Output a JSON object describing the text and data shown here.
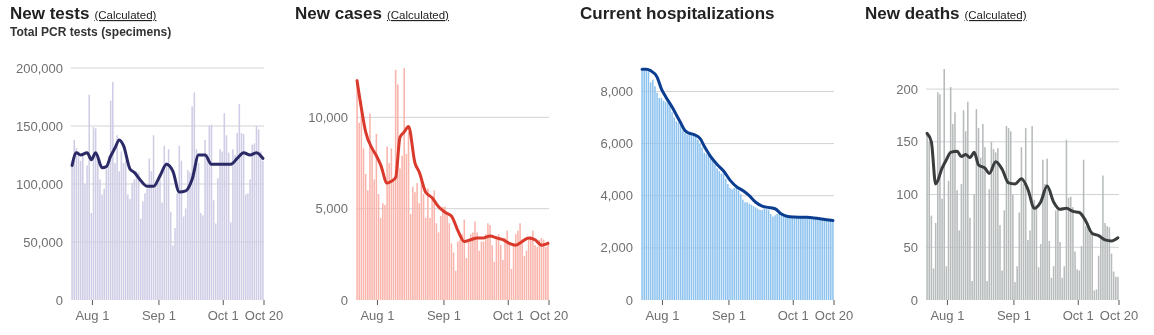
{
  "chart_data": [
    {
      "type": "bar",
      "title": "New tests",
      "subtitle": "Total PCR tests (specimens)",
      "annotations": [
        "(Calculated)"
      ],
      "x": [
        "--07-23",
        "--07-24",
        "--07-25",
        "--07-26",
        "--07-27",
        "--07-28",
        "--07-29",
        "--07-30",
        "--07-31",
        "--08-01",
        "--08-02",
        "--08-03",
        "--08-04",
        "--08-05",
        "--08-06",
        "--08-07",
        "--08-08",
        "--08-09",
        "--08-10",
        "--08-11",
        "--08-12",
        "--08-13",
        "--08-14",
        "--08-15",
        "--08-16",
        "--08-17",
        "--08-18",
        "--08-19",
        "--08-20",
        "--08-21",
        "--08-22",
        "--08-23",
        "--08-24",
        "--08-25",
        "--08-26",
        "--08-27",
        "--08-28",
        "--08-29",
        "--08-30",
        "--08-31",
        "--09-01",
        "--09-02",
        "--09-03",
        "--09-04",
        "--09-05",
        "--09-06",
        "--09-07",
        "--09-08",
        "--09-09",
        "--09-10",
        "--09-11",
        "--09-12",
        "--09-13",
        "--09-14",
        "--09-15",
        "--09-16",
        "--09-17",
        "--09-18",
        "--09-19",
        "--09-20",
        "--09-21",
        "--09-22",
        "--09-23",
        "--09-24",
        "--09-25",
        "--09-26",
        "--09-27",
        "--09-28",
        "--09-29",
        "--09-30",
        "--10-01",
        "--10-02",
        "--10-03",
        "--10-04",
        "--10-05",
        "--10-06",
        "--10-07",
        "--10-08",
        "--10-09",
        "--10-10",
        "--10-11",
        "--10-12",
        "--10-13",
        "--10-14",
        "--10-15",
        "--10-16",
        "--10-17",
        "--10-18",
        "--10-19",
        "--10-20"
      ],
      "xlim": [
        "--07-22",
        "--10-20"
      ],
      "xticks": [
        {
          "value": "--08-01",
          "label": "Aug 1"
        },
        {
          "value": "--09-01",
          "label": "Sep 1"
        },
        {
          "value": "--10-01",
          "label": "Oct 1"
        },
        {
          "value": "--10-20",
          "label": "Oct 20"
        }
      ],
      "ylim": [
        0,
        200000
      ],
      "yticks": [
        0,
        {
          "value": 50000,
          "label": "50,000"
        },
        {
          "value": 100000,
          "label": "100,000"
        },
        {
          "value": 150000,
          "label": "150,000"
        },
        {
          "value": 200000,
          "label": "200,000"
        }
      ],
      "grid": "y",
      "series": [
        {
          "color": "#cfcde6",
          "values": [
            115000,
            138000,
            131000,
            128000,
            120000,
            124000,
            100000,
            116000,
            177000,
            75000,
            149000,
            148000,
            120000,
            104000,
            91000,
            96000,
            113000,
            124000,
            172000,
            188000,
            118000,
            142000,
            111000,
            128000,
            118000,
            120000,
            91000,
            87000,
            101000,
            104000,
            111000,
            110000,
            70000,
            85000,
            92000,
            96000,
            122000,
            111000,
            142000,
            99000,
            101000,
            104000,
            84000,
            133000,
            119000,
            130000,
            76000,
            47000,
            62000,
            92000,
            133000,
            120000,
            72000,
            79000,
            112000,
            110000,
            167000,
            179000,
            130000,
            118000,
            75000,
            73000,
            138000,
            126000,
            150000,
            151000,
            86000,
            66000,
            105000,
            130000,
            128000,
            161000,
            142000,
            127000,
            67000,
            130000,
            125000,
            144000,
            169000,
            144000,
            143000,
            91000,
            92000,
            104000,
            134000,
            135000,
            150000,
            147000,
            128000,
            120000
          ]
        },
        {
          "type": "line",
          "color": "#2b2a66",
          "x": [
            "--07-23",
            "--07-25",
            "--07-27",
            "--07-30",
            "--08-01",
            "--08-03",
            "--08-06",
            "--08-08",
            "--08-10",
            "--08-12",
            "--08-14",
            "--08-16",
            "--08-19",
            "--08-21",
            "--08-24",
            "--08-27",
            "--08-30",
            "--09-02",
            "--09-05",
            "--09-08",
            "--09-11",
            "--09-14",
            "--09-17",
            "--09-20",
            "--09-23",
            "--09-26",
            "--09-29",
            "--10-02",
            "--10-05",
            "--10-08",
            "--10-11",
            "--10-14",
            "--10-17",
            "--10-20"
          ],
          "values": [
            116000,
            127000,
            125000,
            127000,
            121000,
            127000,
            114000,
            115000,
            124000,
            131000,
            138000,
            133000,
            113000,
            110000,
            103000,
            98000,
            98000,
            107000,
            117000,
            111000,
            93000,
            94000,
            104000,
            125000,
            125000,
            117000,
            117000,
            117000,
            117000,
            122000,
            127000,
            125000,
            127000,
            122000
          ]
        }
      ]
    },
    {
      "type": "bar",
      "title": "New cases",
      "annotations": [
        "(Calculated)"
      ],
      "x": [
        "--07-23",
        "--07-24",
        "--07-25",
        "--07-26",
        "--07-27",
        "--07-28",
        "--07-29",
        "--07-30",
        "--07-31",
        "--08-01",
        "--08-02",
        "--08-03",
        "--08-04",
        "--08-05",
        "--08-06",
        "--08-07",
        "--08-08",
        "--08-09",
        "--08-10",
        "--08-11",
        "--08-12",
        "--08-13",
        "--08-14",
        "--08-15",
        "--08-16",
        "--08-17",
        "--08-18",
        "--08-19",
        "--08-20",
        "--08-21",
        "--08-22",
        "--08-23",
        "--08-24",
        "--08-25",
        "--08-26",
        "--08-27",
        "--08-28",
        "--08-29",
        "--08-30",
        "--08-31",
        "--09-01",
        "--09-02",
        "--09-03",
        "--09-04",
        "--09-05",
        "--09-06",
        "--09-07",
        "--09-08",
        "--09-09",
        "--09-10",
        "--09-11",
        "--09-12",
        "--09-13",
        "--09-14",
        "--09-15",
        "--09-16",
        "--09-17",
        "--09-18",
        "--09-19",
        "--09-20",
        "--09-21",
        "--09-22",
        "--09-23",
        "--09-24",
        "--09-25",
        "--09-26",
        "--09-27",
        "--09-28",
        "--09-29",
        "--09-30",
        "--10-01",
        "--10-02",
        "--10-03",
        "--10-04",
        "--10-05",
        "--10-06",
        "--10-07",
        "--10-08",
        "--10-09",
        "--10-10",
        "--10-11",
        "--10-12",
        "--10-13",
        "--10-14",
        "--10-15",
        "--10-16",
        "--10-17",
        "--10-18",
        "--10-19",
        "--10-20"
      ],
      "xlim": [
        "--07-22",
        "--10-20"
      ],
      "xticks": [
        {
          "value": "--08-01",
          "label": "Aug 1"
        },
        {
          "value": "--09-01",
          "label": "Sep 1"
        },
        {
          "value": "--10-01",
          "label": "Oct 1"
        },
        {
          "value": "--10-20",
          "label": "Oct 20"
        }
      ],
      "ylim": [
        0,
        12700
      ],
      "yticks": [
        0,
        {
          "value": 5000,
          "label": "5,000"
        },
        {
          "value": 10000,
          "label": "10,000"
        }
      ],
      "grid": "y",
      "series": [
        {
          "color": "#f9b4ab",
          "values": [
            12100,
            9700,
            10900,
            8300,
            6900,
            6000,
            10200,
            8200,
            6600,
            9100,
            5800,
            4500,
            5300,
            5200,
            8400,
            7500,
            8300,
            6500,
            12600,
            11800,
            7200,
            7900,
            12700,
            8000,
            9200,
            4700,
            6200,
            5900,
            6400,
            5300,
            6800,
            5800,
            4500,
            6100,
            4500,
            5500,
            6000,
            4200,
            3700,
            4600,
            5100,
            5100,
            4800,
            4200,
            3100,
            2600,
            1600,
            3200,
            3300,
            3600,
            4400,
            2300,
            3300,
            3600,
            3700,
            4300,
            3700,
            2700,
            3200,
            3200,
            3600,
            4200,
            4100,
            3000,
            2100,
            3500,
            3600,
            3000,
            2200,
            3400,
            3800,
            3100,
            1700,
            3100,
            3600,
            3800,
            4200,
            3300,
            2400,
            2700,
            3400,
            3500,
            3800,
            3000,
            2900,
            3300,
            3400,
            3300,
            2900,
            3200
          ]
        },
        {
          "type": "line",
          "color": "#d93a2b",
          "x": [
            "--07-23",
            "--07-25",
            "--07-27",
            "--07-30",
            "--08-01",
            "--08-03",
            "--08-06",
            "--08-08",
            "--08-10",
            "--08-12",
            "--08-14",
            "--08-16",
            "--08-19",
            "--08-21",
            "--08-24",
            "--08-27",
            "--08-30",
            "--09-02",
            "--09-05",
            "--09-08",
            "--09-11",
            "--09-14",
            "--09-17",
            "--09-20",
            "--09-23",
            "--09-26",
            "--09-29",
            "--10-02",
            "--10-05",
            "--10-08",
            "--10-11",
            "--10-14",
            "--10-17",
            "--10-20"
          ],
          "values": [
            12000,
            10500,
            9200,
            8300,
            7900,
            7400,
            6400,
            6500,
            6700,
            8900,
            9200,
            9500,
            7500,
            7000,
            5900,
            5600,
            5100,
            4800,
            4600,
            3800,
            3200,
            3300,
            3400,
            3400,
            3500,
            3400,
            3300,
            3100,
            3000,
            3200,
            3400,
            3300,
            3000,
            3100
          ]
        }
      ]
    },
    {
      "type": "bar",
      "title": "Current hospitalizations",
      "x": [
        "--07-23",
        "--07-24",
        "--07-25",
        "--07-26",
        "--07-27",
        "--07-28",
        "--07-29",
        "--07-30",
        "--07-31",
        "--08-01",
        "--08-02",
        "--08-03",
        "--08-04",
        "--08-05",
        "--08-06",
        "--08-07",
        "--08-08",
        "--08-09",
        "--08-10",
        "--08-11",
        "--08-12",
        "--08-13",
        "--08-14",
        "--08-15",
        "--08-16",
        "--08-17",
        "--08-18",
        "--08-19",
        "--08-20",
        "--08-21",
        "--08-22",
        "--08-23",
        "--08-24",
        "--08-25",
        "--08-26",
        "--08-27",
        "--08-28",
        "--08-29",
        "--08-30",
        "--08-31",
        "--09-01",
        "--09-02",
        "--09-03",
        "--09-04",
        "--09-05",
        "--09-06",
        "--09-07",
        "--09-08",
        "--09-09",
        "--09-10",
        "--09-11",
        "--09-12",
        "--09-13",
        "--09-14",
        "--09-15",
        "--09-16",
        "--09-17",
        "--09-18",
        "--09-19",
        "--09-20",
        "--09-21",
        "--09-22",
        "--09-23",
        "--09-24",
        "--09-25",
        "--09-26",
        "--09-27",
        "--09-28",
        "--09-29",
        "--09-30",
        "--10-01",
        "--10-02",
        "--10-03",
        "--10-04",
        "--10-05",
        "--10-06",
        "--10-07",
        "--10-08",
        "--10-09",
        "--10-10",
        "--10-11",
        "--10-12",
        "--10-13",
        "--10-14",
        "--10-15",
        "--10-16",
        "--10-17",
        "--10-18",
        "--10-19",
        "--10-20"
      ],
      "xlim": [
        "--07-22",
        "--10-20"
      ],
      "xticks": [
        {
          "value": "--08-01",
          "label": "Aug 1"
        },
        {
          "value": "--09-01",
          "label": "Sep 1"
        },
        {
          "value": "--10-01",
          "label": "Oct 1"
        },
        {
          "value": "--10-20",
          "label": "Oct 20"
        }
      ],
      "ylim": [
        0,
        8900
      ],
      "yticks": [
        0,
        {
          "value": 2000,
          "label": "2,000"
        },
        {
          "value": 4000,
          "label": "4,000"
        },
        {
          "value": 6000,
          "label": "6,000"
        },
        {
          "value": 8000,
          "label": "8,000"
        }
      ],
      "grid": "y",
      "series": [
        {
          "color": "#8ec3ef",
          "values": [
            8800,
            8800,
            8800,
            8800,
            8350,
            8450,
            8200,
            7950,
            7750,
            7750,
            7650,
            7600,
            7550,
            7450,
            7200,
            7000,
            6850,
            6800,
            6700,
            6500,
            6400,
            6350,
            6350,
            6350,
            6400,
            6300,
            6150,
            6000,
            5850,
            5650,
            5600,
            5550,
            5450,
            5350,
            5200,
            5050,
            4950,
            4850,
            4850,
            4650,
            4450,
            4300,
            4250,
            4300,
            4300,
            4200,
            4050,
            3850,
            3750,
            3750,
            3700,
            3650,
            3600,
            3550,
            3500,
            3450,
            3450,
            3500,
            3500,
            3450,
            3300,
            3200,
            3250,
            3300,
            3350,
            3300,
            3250,
            3200,
            3150,
            3150,
            3150,
            3150,
            3150,
            3150,
            3150,
            3150,
            3150,
            3150,
            3150,
            3100,
            3100,
            3100,
            3100,
            3100,
            3100,
            3080,
            3060,
            3050,
            3050,
            3050
          ]
        },
        {
          "type": "line",
          "color": "#0b3d91",
          "x": [
            "--07-23",
            "--07-25",
            "--07-27",
            "--07-30",
            "--08-01",
            "--08-03",
            "--08-06",
            "--08-08",
            "--08-10",
            "--08-12",
            "--08-14",
            "--08-16",
            "--08-19",
            "--08-21",
            "--08-24",
            "--08-27",
            "--08-30",
            "--09-02",
            "--09-05",
            "--09-08",
            "--09-11",
            "--09-14",
            "--09-17",
            "--09-20",
            "--09-23",
            "--09-26",
            "--09-29",
            "--10-02",
            "--10-05",
            "--10-08",
            "--10-11",
            "--10-14",
            "--10-17",
            "--10-20"
          ],
          "values": [
            8850,
            8850,
            8800,
            8550,
            8100,
            7800,
            7400,
            7100,
            6800,
            6500,
            6400,
            6350,
            6200,
            5900,
            5500,
            5200,
            4950,
            4600,
            4350,
            4200,
            4000,
            3750,
            3600,
            3550,
            3500,
            3300,
            3200,
            3180,
            3170,
            3170,
            3150,
            3120,
            3080,
            3050
          ]
        }
      ]
    },
    {
      "type": "bar",
      "title": "New deaths",
      "annotations": [
        "(Calculated)"
      ],
      "x": [
        "--07-23",
        "--07-24",
        "--07-25",
        "--07-26",
        "--07-27",
        "--07-28",
        "--07-29",
        "--07-30",
        "--07-31",
        "--08-01",
        "--08-02",
        "--08-03",
        "--08-04",
        "--08-05",
        "--08-06",
        "--08-07",
        "--08-08",
        "--08-09",
        "--08-10",
        "--08-11",
        "--08-12",
        "--08-13",
        "--08-14",
        "--08-15",
        "--08-16",
        "--08-17",
        "--08-18",
        "--08-19",
        "--08-20",
        "--08-21",
        "--08-22",
        "--08-23",
        "--08-24",
        "--08-25",
        "--08-26",
        "--08-27",
        "--08-28",
        "--08-29",
        "--08-30",
        "--08-31",
        "--09-01",
        "--09-02",
        "--09-03",
        "--09-04",
        "--09-05",
        "--09-06",
        "--09-07",
        "--09-08",
        "--09-09",
        "--09-10",
        "--09-11",
        "--09-12",
        "--09-13",
        "--09-14",
        "--09-15",
        "--09-16",
        "--09-17",
        "--09-18",
        "--09-19",
        "--09-20",
        "--09-21",
        "--09-22",
        "--09-23",
        "--09-24",
        "--09-25",
        "--09-26",
        "--09-27",
        "--09-28",
        "--09-29",
        "--09-30",
        "--10-01",
        "--10-02",
        "--10-03",
        "--10-04",
        "--10-05",
        "--10-06",
        "--10-07",
        "--10-08",
        "--10-09",
        "--10-10",
        "--10-11",
        "--10-12",
        "--10-13",
        "--10-14",
        "--10-15",
        "--10-16",
        "--10-17",
        "--10-18",
        "--10-19",
        "--10-20"
      ],
      "xlim": [
        "--07-22",
        "--10-20"
      ],
      "xticks": [
        {
          "value": "--08-01",
          "label": "Aug 1"
        },
        {
          "value": "--09-01",
          "label": "Sep 1"
        },
        {
          "value": "--10-01",
          "label": "Oct 1"
        },
        {
          "value": "--10-20",
          "label": "Oct 20"
        }
      ],
      "ylim": [
        0,
        220
      ],
      "yticks": [
        0,
        50,
        100,
        150,
        200
      ],
      "grid": "y",
      "series": [
        {
          "color": "#b7bbbb",
          "values": [
            158,
            150,
            80,
            30,
            73,
            197,
            195,
            96,
            219,
            32,
            113,
            202,
            167,
            178,
            104,
            66,
            110,
            180,
            160,
            188,
            78,
            18,
            100,
            181,
            163,
            135,
            167,
            145,
            18,
            105,
            150,
            143,
            140,
            144,
            71,
            28,
            85,
            165,
            163,
            160,
            100,
            17,
            32,
            83,
            145,
            110,
            163,
            57,
            66,
            165,
            95,
            90,
            31,
            53,
            133,
            110,
            134,
            56,
            21,
            32,
            85,
            88,
            55,
            21,
            32,
            152,
            97,
            98,
            88,
            46,
            29,
            28,
            51,
            133,
            70,
            73,
            63,
            65,
            9,
            10,
            42,
            60,
            118,
            73,
            70,
            69,
            44,
            27,
            22,
            22
          ]
        },
        {
          "type": "line",
          "color": "#3a3d3d",
          "x": [
            "--07-23",
            "--07-25",
            "--07-27",
            "--07-30",
            "--08-01",
            "--08-03",
            "--08-06",
            "--08-08",
            "--08-10",
            "--08-12",
            "--08-14",
            "--08-16",
            "--08-19",
            "--08-21",
            "--08-24",
            "--08-27",
            "--08-30",
            "--09-02",
            "--09-05",
            "--09-08",
            "--09-11",
            "--09-14",
            "--09-17",
            "--09-20",
            "--09-23",
            "--09-26",
            "--09-29",
            "--10-02",
            "--10-05",
            "--10-08",
            "--10-11",
            "--10-14",
            "--10-17",
            "--10-20"
          ],
          "values": [
            158,
            150,
            110,
            125,
            133,
            140,
            141,
            136,
            138,
            135,
            140,
            128,
            125,
            120,
            131,
            124,
            111,
            110,
            115,
            105,
            87,
            93,
            108,
            93,
            86,
            87,
            84,
            83,
            75,
            63,
            61,
            57,
            56,
            59
          ]
        }
      ]
    }
  ]
}
